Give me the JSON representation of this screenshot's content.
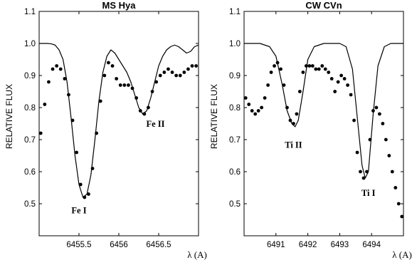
{
  "chart_data": [
    {
      "type": "line",
      "title": "MS Hya",
      "ylabel": "RELATIVE FLUX",
      "xlabel": "λ (A)",
      "xlim": [
        6455.0,
        6457.0
      ],
      "ylim": [
        0.4,
        1.1
      ],
      "xticks": [
        6455.5,
        6456,
        6456.5
      ],
      "xtick_labels": [
        "6455.5",
        "6456",
        "6456.5"
      ],
      "yticks": [
        0.5,
        0.6,
        0.7,
        0.8,
        0.9,
        1.0,
        1.1
      ],
      "ytick_labels": [
        "0.5",
        "0.6",
        "0.7",
        "0.8",
        "0.9",
        "1.0",
        "1.1"
      ],
      "grid": false,
      "series": [
        {
          "style": "dots",
          "x": [
            6455.02,
            6455.07,
            6455.12,
            6455.17,
            6455.22,
            6455.27,
            6455.32,
            6455.37,
            6455.42,
            6455.47,
            6455.52,
            6455.57,
            6455.62,
            6455.67,
            6455.72,
            6455.77,
            6455.82,
            6455.87,
            6455.92,
            6455.97,
            6456.02,
            6456.07,
            6456.12,
            6456.17,
            6456.22,
            6456.27,
            6456.32,
            6456.37,
            6456.42,
            6456.47,
            6456.52,
            6456.57,
            6456.62,
            6456.67,
            6456.72,
            6456.77,
            6456.82,
            6456.87,
            6456.92,
            6456.97
          ],
          "y": [
            0.72,
            0.81,
            0.88,
            0.92,
            0.93,
            0.92,
            0.89,
            0.84,
            0.76,
            0.66,
            0.56,
            0.52,
            0.53,
            0.61,
            0.72,
            0.82,
            0.9,
            0.94,
            0.93,
            0.89,
            0.87,
            0.87,
            0.87,
            0.86,
            0.83,
            0.79,
            0.78,
            0.8,
            0.85,
            0.88,
            0.9,
            0.91,
            0.92,
            0.91,
            0.9,
            0.9,
            0.91,
            0.92,
            0.93,
            0.93
          ]
        },
        {
          "style": "line",
          "x": [
            6455.0,
            6455.05,
            6455.1,
            6455.15,
            6455.2,
            6455.25,
            6455.3,
            6455.35,
            6455.4,
            6455.45,
            6455.5,
            6455.55,
            6455.6,
            6455.65,
            6455.7,
            6455.75,
            6455.8,
            6455.85,
            6455.9,
            6455.95,
            6456.0,
            6456.05,
            6456.1,
            6456.15,
            6456.2,
            6456.25,
            6456.3,
            6456.35,
            6456.4,
            6456.45,
            6456.5,
            6456.55,
            6456.6,
            6456.65,
            6456.7,
            6456.75,
            6456.8,
            6456.85,
            6456.9,
            6456.95,
            6457.0
          ],
          "y": [
            1.0,
            1.0,
            1.0,
            0.999,
            0.995,
            0.98,
            0.95,
            0.88,
            0.77,
            0.65,
            0.56,
            0.52,
            0.53,
            0.59,
            0.7,
            0.82,
            0.91,
            0.96,
            0.98,
            0.97,
            0.95,
            0.93,
            0.91,
            0.88,
            0.84,
            0.8,
            0.78,
            0.79,
            0.83,
            0.88,
            0.93,
            0.96,
            0.98,
            0.99,
            0.995,
            0.99,
            0.98,
            0.97,
            0.975,
            0.99,
            0.995
          ]
        }
      ],
      "annotations": [
        {
          "text": "Fe I",
          "x": 6455.5,
          "y": 0.47
        },
        {
          "text": "Fe II",
          "x": 6456.46,
          "y": 0.74
        }
      ]
    },
    {
      "type": "line",
      "title": "CW CVn",
      "ylabel": "RELATIVE FLUX",
      "xlabel": "λ (A)",
      "xlim": [
        6490.0,
        6495.0
      ],
      "ylim": [
        0.4,
        1.1
      ],
      "xticks": [
        6491,
        6492,
        6493,
        6494
      ],
      "xtick_labels": [
        "6491",
        "6492",
        "6493",
        "6494"
      ],
      "yticks": [
        0.5,
        0.6,
        0.7,
        0.8,
        0.9,
        1.0,
        1.1
      ],
      "ytick_labels": [
        "0.5",
        "0.6",
        "0.7",
        "0.8",
        "0.9",
        "1.0",
        "1.1"
      ],
      "grid": false,
      "series": [
        {
          "style": "dots",
          "x": [
            6490.05,
            6490.15,
            6490.25,
            6490.35,
            6490.45,
            6490.55,
            6490.65,
            6490.75,
            6490.85,
            6490.95,
            6491.05,
            6491.15,
            6491.25,
            6491.35,
            6491.45,
            6491.55,
            6491.65,
            6491.75,
            6491.85,
            6491.95,
            6492.05,
            6492.15,
            6492.25,
            6492.35,
            6492.45,
            6492.55,
            6492.65,
            6492.75,
            6492.85,
            6492.95,
            6493.05,
            6493.15,
            6493.25,
            6493.35,
            6493.45,
            6493.55,
            6493.65,
            6493.75,
            6493.85,
            6493.95,
            6494.05,
            6494.15,
            6494.25,
            6494.35,
            6494.45,
            6494.55,
            6494.65,
            6494.75,
            6494.85,
            6494.95
          ],
          "y": [
            0.83,
            0.81,
            0.79,
            0.78,
            0.79,
            0.8,
            0.83,
            0.87,
            0.91,
            0.93,
            0.94,
            0.92,
            0.87,
            0.8,
            0.76,
            0.75,
            0.78,
            0.85,
            0.91,
            0.93,
            0.93,
            0.93,
            0.92,
            0.92,
            0.93,
            0.92,
            0.91,
            0.89,
            0.85,
            0.88,
            0.9,
            0.89,
            0.87,
            0.84,
            0.76,
            0.66,
            0.6,
            0.58,
            0.6,
            0.7,
            0.79,
            0.8,
            0.78,
            0.75,
            0.7,
            0.65,
            0.6,
            0.55,
            0.5,
            0.46
          ]
        },
        {
          "style": "line",
          "x": [
            6490.0,
            6490.5,
            6490.8,
            6491.0,
            6491.2,
            6491.35,
            6491.5,
            6491.6,
            6491.7,
            6491.85,
            6492.0,
            6492.2,
            6492.5,
            6493.0,
            6493.2,
            6493.4,
            6493.55,
            6493.7,
            6493.8,
            6493.9,
            6494.05,
            6494.2,
            6494.4,
            6494.6,
            6495.0
          ],
          "y": [
            1.0,
            1.0,
            0.99,
            0.96,
            0.87,
            0.79,
            0.75,
            0.74,
            0.76,
            0.85,
            0.95,
            0.99,
            1.0,
            1.0,
            0.99,
            0.92,
            0.77,
            0.62,
            0.58,
            0.6,
            0.78,
            0.93,
            0.99,
            1.0,
            1.0
          ]
        }
      ],
      "annotations": [
        {
          "text": "Ti II",
          "x": 6491.55,
          "y": 0.675
        },
        {
          "text": "Ti I",
          "x": 6493.9,
          "y": 0.525
        }
      ]
    }
  ]
}
